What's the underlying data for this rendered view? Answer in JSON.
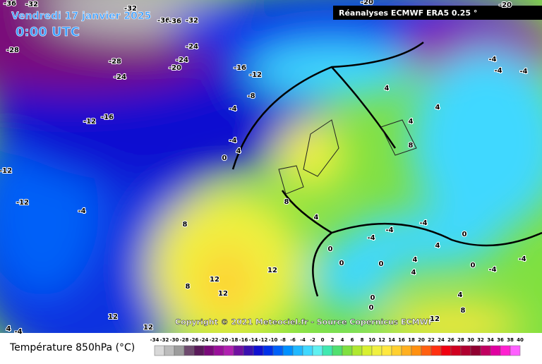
{
  "header": {
    "date": "Vendredi 17 janvier 2025",
    "time": "0:00 UTC",
    "source_box": "Réanalyses ECMWF ERA5 0.25 °",
    "copyright": "Copyright © 2021 Meteociel.fr - Source Copernicus ECMWF"
  },
  "contour_labels": [
    -36,
    -32,
    -32,
    -36,
    -36,
    -32,
    -20,
    -20,
    -28,
    -24,
    -28,
    -24,
    -20,
    -24,
    -16,
    -12,
    -8,
    -4,
    -12,
    -16,
    -4,
    4,
    0,
    -12,
    -12,
    -4,
    4,
    4,
    -4,
    -4,
    -4,
    4,
    8,
    8,
    8,
    4,
    -4,
    -4,
    0,
    -4,
    0,
    4,
    0,
    0,
    4,
    12,
    4,
    0,
    -4,
    -4,
    12,
    8,
    12,
    4,
    0,
    0,
    8,
    12,
    12,
    12,
    4,
    -4
  ],
  "legend": {
    "title": "Température 850hPa (°C)",
    "ticks": [
      -34,
      -32,
      -30,
      -28,
      -26,
      -24,
      -22,
      -20,
      -18,
      -16,
      -14,
      -12,
      -10,
      -8,
      -6,
      -4,
      -2,
      0,
      2,
      4,
      6,
      8,
      10,
      12,
      14,
      16,
      18,
      20,
      22,
      24,
      26,
      28,
      30,
      32,
      34,
      36,
      38,
      40
    ],
    "colors": [
      "#d8d8d8",
      "#bcbcbc",
      "#9c9c9c",
      "#6e4a6e",
      "#5a1a5a",
      "#7a0a7a",
      "#9a109a",
      "#b020b0",
      "#7010a0",
      "#3a10b0",
      "#1010d0",
      "#0030e8",
      "#0060f8",
      "#0090ff",
      "#20b8ff",
      "#40d8ff",
      "#60f0f0",
      "#40e8b0",
      "#50e070",
      "#80e040",
      "#b0e830",
      "#d8f030",
      "#f0f040",
      "#ffe840",
      "#ffd030",
      "#ffb020",
      "#ff9010",
      "#ff6010",
      "#ff3010",
      "#f00010",
      "#d00020",
      "#b00030",
      "#900030",
      "#c00060",
      "#e000a0",
      "#ff20d0",
      "#ff60ff"
    ]
  }
}
